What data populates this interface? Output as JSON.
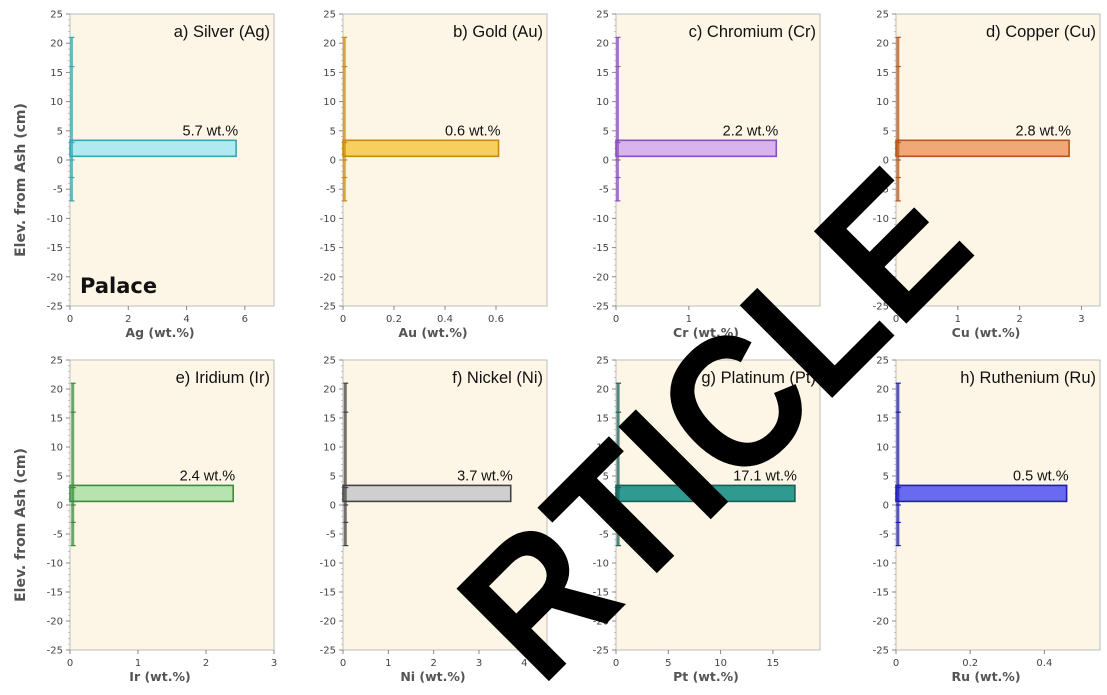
{
  "figure": {
    "ylabel": "Elev. from Ash (cm)",
    "site_label": "Palace",
    "watermark_text": "RETRACTED ARTICLE"
  },
  "chart_data": [
    {
      "type": "bar",
      "orientation": "horizontal",
      "title": "a) Silver (Ag)",
      "xlabel": "Ag (wt.%)",
      "xlim": [
        0,
        7
      ],
      "xticks": [
        0,
        2,
        4,
        6
      ],
      "ylim": [
        -25,
        25
      ],
      "yticks": [
        -25,
        -20,
        -15,
        -10,
        -5,
        0,
        5,
        10,
        15,
        20,
        25
      ],
      "fill": "#aeeaf0",
      "stroke": "#3aa4b3",
      "trace": [
        {
          "y": 21,
          "x": 0.05
        },
        {
          "y": 16,
          "x": 0.05
        },
        {
          "y": 3,
          "x": 0.05
        },
        {
          "y": 0,
          "x": 0.05
        },
        {
          "y": -3,
          "x": 0.05
        },
        {
          "y": -7,
          "x": 0.05
        }
      ],
      "bar": {
        "y": 2,
        "value": 5.7
      },
      "annotation": "5.7 wt.%"
    },
    {
      "type": "bar",
      "orientation": "horizontal",
      "title": "b) Gold (Au)",
      "xlabel": "Au (wt.%)",
      "xlim": [
        0,
        0.8
      ],
      "xticks": [
        0,
        0.2,
        0.4,
        0.6
      ],
      "ylim": [
        -25,
        25
      ],
      "yticks": [
        -25,
        -20,
        -15,
        -10,
        -5,
        0,
        5,
        10,
        15,
        20,
        25
      ],
      "fill": "#f7cf5e",
      "stroke": "#c98a10",
      "trace": [
        {
          "y": 21,
          "x": 0.005
        },
        {
          "y": 16,
          "x": 0.005
        },
        {
          "y": 3,
          "x": 0.005
        },
        {
          "y": 0,
          "x": 0.005
        },
        {
          "y": -3,
          "x": 0.005
        },
        {
          "y": -7,
          "x": 0.005
        }
      ],
      "bar": {
        "y": 2,
        "value": 0.61
      },
      "annotation": "0.6 wt.%"
    },
    {
      "type": "bar",
      "orientation": "horizontal",
      "title": "c) Chromium (Cr)",
      "xlabel": "Cr (wt.%)",
      "xlim": [
        0,
        2.8
      ],
      "xticks": [
        0,
        1,
        2
      ],
      "ylim": [
        -25,
        25
      ],
      "yticks": [
        -25,
        -20,
        -15,
        -10,
        -5,
        0,
        5,
        10,
        15,
        20,
        25
      ],
      "fill": "#d8b3ee",
      "stroke": "#8a4fc0",
      "trace": [
        {
          "y": 21,
          "x": 0.02
        },
        {
          "y": 16,
          "x": 0.02
        },
        {
          "y": 3,
          "x": 0.02
        },
        {
          "y": 0,
          "x": 0.02
        },
        {
          "y": -3,
          "x": 0.02
        },
        {
          "y": -7,
          "x": 0.02
        }
      ],
      "bar": {
        "y": 2,
        "value": 2.2
      },
      "annotation": "2.2 wt.%"
    },
    {
      "type": "bar",
      "orientation": "horizontal",
      "title": "d) Copper (Cu)",
      "xlabel": "Cu (wt.%)",
      "xlim": [
        0,
        3.3
      ],
      "xticks": [
        0,
        1,
        2,
        3
      ],
      "ylim": [
        -25,
        25
      ],
      "yticks": [
        -25,
        -20,
        -15,
        -10,
        -5,
        0,
        5,
        10,
        15,
        20,
        25
      ],
      "fill": "#f0a878",
      "stroke": "#b5561e",
      "trace": [
        {
          "y": 21,
          "x": 0.03
        },
        {
          "y": 16,
          "x": 0.03
        },
        {
          "y": 3,
          "x": 0.03
        },
        {
          "y": 0,
          "x": 0.03
        },
        {
          "y": -3,
          "x": 0.03
        },
        {
          "y": -7,
          "x": 0.03
        }
      ],
      "bar": {
        "y": 2,
        "value": 2.8
      },
      "annotation": "2.8 wt.%"
    },
    {
      "type": "bar",
      "orientation": "horizontal",
      "title": "e) Iridium (Ir)",
      "xlabel": "Ir (wt.%)",
      "xlim": [
        0,
        3
      ],
      "xticks": [
        0,
        1,
        2,
        3
      ],
      "ylim": [
        -25,
        25
      ],
      "yticks": [
        -25,
        -20,
        -15,
        -10,
        -5,
        0,
        5,
        10,
        15,
        20,
        25
      ],
      "fill": "#b6e3b0",
      "stroke": "#3c8a3c",
      "trace": [
        {
          "y": 21,
          "x": 0.04
        },
        {
          "y": 16,
          "x": 0.04
        },
        {
          "y": 3,
          "x": 0.04
        },
        {
          "y": 0,
          "x": 0.04
        },
        {
          "y": -3,
          "x": 0.04
        },
        {
          "y": -7,
          "x": 0.04
        }
      ],
      "bar": {
        "y": 2,
        "value": 2.4
      },
      "annotation": "2.4 wt.%"
    },
    {
      "type": "bar",
      "orientation": "horizontal",
      "title": "f) Nickel (Ni)",
      "xlabel": "Ni (wt.%)",
      "xlim": [
        0,
        4.5
      ],
      "xticks": [
        0,
        1,
        2,
        3,
        4
      ],
      "ylim": [
        -25,
        25
      ],
      "yticks": [
        -25,
        -20,
        -15,
        -10,
        -5,
        0,
        5,
        10,
        15,
        20,
        25
      ],
      "fill": "#cfcfcf",
      "stroke": "#444444",
      "trace": [
        {
          "y": 21,
          "x": 0.05
        },
        {
          "y": 16,
          "x": 0.05
        },
        {
          "y": 3,
          "x": 0.05
        },
        {
          "y": 0,
          "x": 0.05
        },
        {
          "y": -3,
          "x": 0.05
        },
        {
          "y": -7,
          "x": 0.05
        }
      ],
      "bar": {
        "y": 2,
        "value": 3.7
      },
      "annotation": "3.7 wt.%"
    },
    {
      "type": "bar",
      "orientation": "horizontal",
      "title": "g) Platinum (Pt)",
      "xlabel": "Pt (wt.%)",
      "xlim": [
        0,
        19.5
      ],
      "xticks": [
        0,
        5,
        10,
        15
      ],
      "ylim": [
        -25,
        25
      ],
      "yticks": [
        -25,
        -20,
        -15,
        -10,
        -5,
        0,
        5,
        10,
        15,
        20,
        25
      ],
      "fill": "#2f9a90",
      "stroke": "#1b5f58",
      "trace": [
        {
          "y": 21,
          "x": 0.2
        },
        {
          "y": 16,
          "x": 0.2
        },
        {
          "y": 3,
          "x": 0.2
        },
        {
          "y": 0,
          "x": 0.2
        },
        {
          "y": -3,
          "x": 0.2
        },
        {
          "y": -7,
          "x": 0.2
        }
      ],
      "bar": {
        "y": 2,
        "value": 17.1
      },
      "annotation": "17.1 wt.%"
    },
    {
      "type": "bar",
      "orientation": "horizontal",
      "title": "h) Ruthenium (Ru)",
      "xlabel": "Ru (wt.%)",
      "xlim": [
        0,
        0.55
      ],
      "xticks": [
        0,
        0.2,
        0.4
      ],
      "ylim": [
        -25,
        25
      ],
      "yticks": [
        -25,
        -20,
        -15,
        -10,
        -5,
        0,
        5,
        10,
        15,
        20,
        25
      ],
      "fill": "#6a6af0",
      "stroke": "#2020b0",
      "trace": [
        {
          "y": 21,
          "x": 0.005
        },
        {
          "y": 16,
          "x": 0.005
        },
        {
          "y": 3,
          "x": 0.005
        },
        {
          "y": 0,
          "x": 0.005
        },
        {
          "y": -3,
          "x": 0.005
        },
        {
          "y": -7,
          "x": 0.005
        }
      ],
      "bar": {
        "y": 2,
        "value": 0.46
      },
      "annotation": "0.5 wt.%"
    }
  ]
}
